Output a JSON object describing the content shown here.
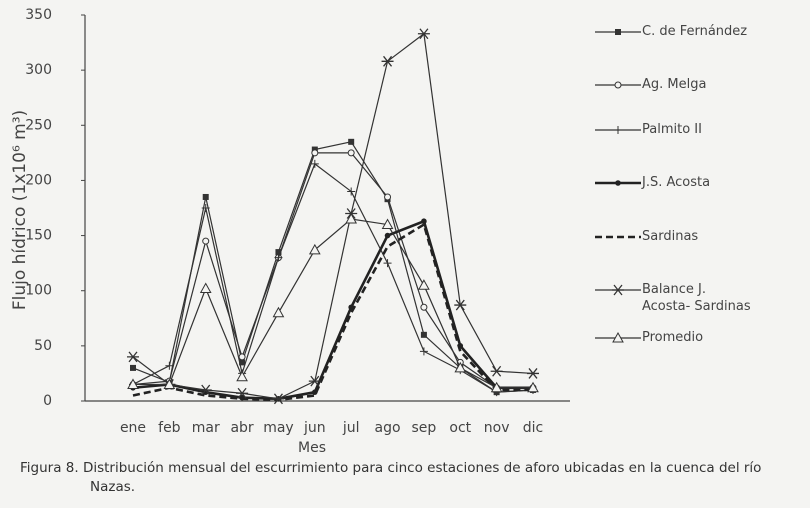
{
  "chart_data": {
    "type": "line",
    "y_label": "Flujo hídrico (1x10⁶ m³)",
    "x_label": "Mes",
    "caption": "Figura 8. Distribución mensual del escurrimiento para cinco estaciones de aforo ubicadas en la cuenca del río Nazas.",
    "categories": [
      "ene",
      "feb",
      "mar",
      "abr",
      "may",
      "jun",
      "jul",
      "ago",
      "sep",
      "oct",
      "nov",
      "dic"
    ],
    "ylim": [
      0,
      350
    ],
    "yticks": [
      0,
      50,
      100,
      150,
      200,
      250,
      300,
      350
    ],
    "series": [
      {
        "name": "C. de Fernández",
        "color": "#333333",
        "marker": "square",
        "line_style": "solid",
        "values": [
          30,
          17,
          185,
          35,
          135,
          228,
          235,
          183,
          60,
          30,
          8,
          10
        ]
      },
      {
        "name": "Ag. Melga",
        "color": "#333333",
        "marker": "circle",
        "line_style": "solid",
        "values": [
          15,
          18,
          145,
          40,
          130,
          225,
          225,
          185,
          85,
          35,
          12,
          12
        ]
      },
      {
        "name": "Palmito II",
        "color": "#333333",
        "marker": "plus",
        "line_style": "solid",
        "values": [
          15,
          32,
          175,
          25,
          130,
          215,
          190,
          125,
          45,
          28,
          8,
          10
        ]
      },
      {
        "name": "J.S. Acosta",
        "color": "#222222",
        "marker": "dot",
        "line_style": "thick",
        "values": [
          12,
          15,
          8,
          3,
          2,
          8,
          85,
          150,
          163,
          50,
          12,
          12
        ]
      },
      {
        "name": "Sardinas",
        "color": "#222222",
        "marker": "none",
        "line_style": "dashed",
        "values": [
          5,
          12,
          5,
          2,
          1,
          5,
          80,
          140,
          160,
          45,
          10,
          10
        ]
      },
      {
        "name": "Balance J. Acosta- Sardinas",
        "color": "#333333",
        "marker": "asterisk",
        "line_style": "solid",
        "values": [
          40,
          15,
          10,
          7,
          2,
          18,
          170,
          308,
          333,
          87,
          27,
          25
        ]
      },
      {
        "name": "Promedio",
        "color": "#333333",
        "marker": "triangle",
        "line_style": "solid",
        "values": [
          15,
          15,
          102,
          22,
          80,
          137,
          165,
          160,
          105,
          30,
          12,
          12
        ]
      }
    ]
  }
}
